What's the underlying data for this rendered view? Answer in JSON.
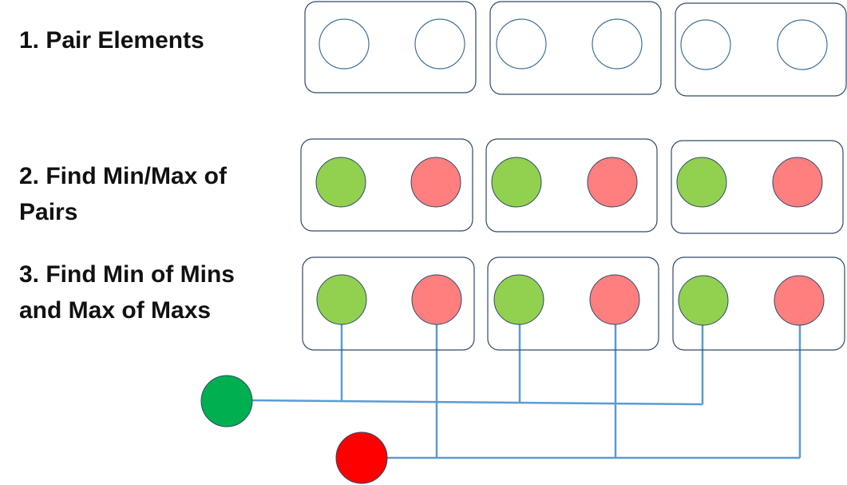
{
  "steps": [
    {
      "line1": "1. Pair Elements",
      "line2": ""
    },
    {
      "line1": "2. Find Min/Max of",
      "line2": "Pairs"
    },
    {
      "line1": "3. Find Min of Mins",
      "line2": "and Max of Maxs"
    }
  ],
  "colors": {
    "box_stroke": "#2e4a6b",
    "empty_stroke": "#41719c",
    "min_fill": "#92d050",
    "max_fill": "#ff7f7f",
    "connector": "#5b9bd5",
    "overall_min_fill": "#00b050",
    "overall_max_fill": "#ff0000"
  }
}
